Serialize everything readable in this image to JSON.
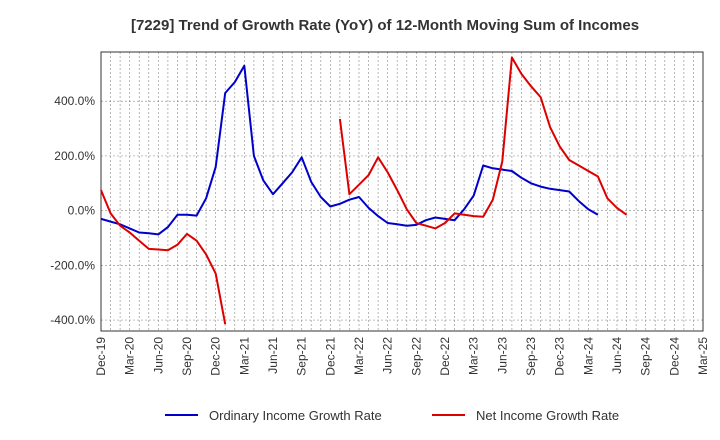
{
  "chart_data": {
    "type": "line",
    "title": "[7229]  Trend of Growth Rate (YoY) of 12-Month Moving Sum of Incomes",
    "xlabel": "",
    "ylabel": "",
    "ylim": [
      -440,
      580
    ],
    "yticks": [
      400,
      200,
      0,
      -200,
      -400
    ],
    "ytick_labels": [
      "400.0%",
      "200.0%",
      "0.0%",
      "-200.0%",
      "-400.0%"
    ],
    "xtick_labels": [
      "Dec-19",
      "Mar-20",
      "Jun-20",
      "Sep-20",
      "Dec-20",
      "Mar-21",
      "Jun-21",
      "Sep-21",
      "Dec-21",
      "Mar-22",
      "Jun-22",
      "Sep-22",
      "Dec-22",
      "Mar-23",
      "Jun-23",
      "Sep-23",
      "Dec-23",
      "Mar-24",
      "Jun-24",
      "Sep-24",
      "Dec-24",
      "Mar-25"
    ],
    "grid": true,
    "legend_position": "bottom",
    "series": [
      {
        "name": "Ordinary Income Growth Rate",
        "color": "#0000cc",
        "points": [
          [
            0,
            -30
          ],
          [
            1,
            -40
          ],
          [
            2,
            -50
          ],
          [
            3,
            -65
          ],
          [
            4,
            -80
          ],
          [
            5,
            -83
          ],
          [
            6,
            -87
          ],
          [
            7,
            -60
          ],
          [
            8,
            -15
          ],
          [
            9,
            -15
          ],
          [
            10,
            -18
          ],
          [
            11,
            45
          ],
          [
            12,
            160
          ],
          [
            13,
            430
          ],
          [
            14,
            470
          ],
          [
            15,
            530
          ],
          [
            16,
            200
          ],
          [
            17,
            110
          ],
          [
            18,
            60
          ],
          [
            19,
            100
          ],
          [
            20,
            140
          ],
          [
            21,
            195
          ],
          [
            22,
            105
          ],
          [
            23,
            50
          ],
          [
            24,
            15
          ],
          [
            25,
            25
          ],
          [
            26,
            40
          ],
          [
            27,
            50
          ],
          [
            28,
            10
          ],
          [
            29,
            -20
          ],
          [
            30,
            -45
          ],
          [
            31,
            -50
          ],
          [
            32,
            -55
          ],
          [
            33,
            -52
          ],
          [
            34,
            -35
          ],
          [
            35,
            -25
          ],
          [
            36,
            -30
          ],
          [
            37,
            -35
          ],
          [
            38,
            5
          ],
          [
            39,
            55
          ],
          [
            40,
            165
          ],
          [
            41,
            155
          ],
          [
            42,
            150
          ],
          [
            43,
            145
          ],
          [
            44,
            120
          ],
          [
            45,
            100
          ],
          [
            46,
            88
          ],
          [
            47,
            80
          ],
          [
            48,
            75
          ],
          [
            49,
            70
          ],
          [
            50,
            35
          ],
          [
            51,
            5
          ],
          [
            52,
            -15
          ]
        ]
      },
      {
        "name": "Net Income Growth Rate",
        "color": "#dd0000",
        "points": [
          [
            0,
            75
          ],
          [
            1,
            -10
          ],
          [
            2,
            -55
          ],
          [
            3,
            -80
          ],
          [
            4,
            -110
          ],
          [
            5,
            -140
          ],
          [
            6,
            -142
          ],
          [
            7,
            -145
          ],
          [
            8,
            -125
          ],
          [
            9,
            -85
          ],
          [
            10,
            -110
          ],
          [
            11,
            -160
          ],
          [
            12,
            -230
          ],
          [
            13,
            -415
          ],
          null,
          [
            25,
            335
          ],
          [
            26,
            60
          ],
          [
            27,
            95
          ],
          [
            28,
            130
          ],
          [
            29,
            195
          ],
          [
            30,
            140
          ],
          [
            31,
            75
          ],
          [
            32,
            5
          ],
          [
            33,
            -45
          ],
          [
            34,
            -55
          ],
          [
            35,
            -65
          ],
          [
            36,
            -45
          ],
          [
            37,
            -10
          ],
          [
            38,
            -15
          ],
          [
            39,
            -20
          ],
          [
            40,
            -22
          ],
          [
            41,
            40
          ],
          [
            42,
            180
          ],
          [
            43,
            560
          ],
          [
            44,
            500
          ],
          [
            45,
            455
          ],
          [
            46,
            415
          ],
          [
            47,
            305
          ],
          [
            48,
            235
          ],
          [
            49,
            185
          ],
          [
            50,
            165
          ],
          [
            51,
            145
          ],
          [
            52,
            125
          ],
          [
            53,
            45
          ],
          [
            54,
            10
          ],
          [
            55,
            -15
          ]
        ]
      }
    ]
  }
}
